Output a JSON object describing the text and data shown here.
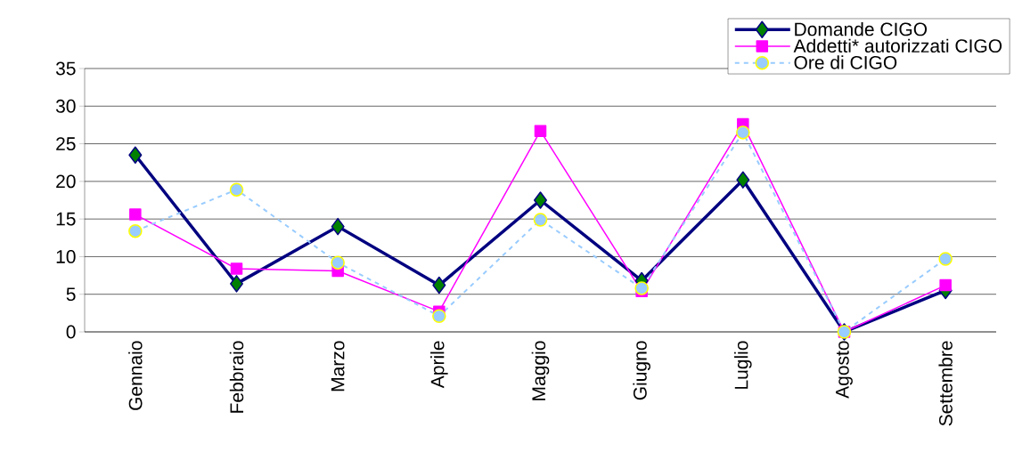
{
  "chart_data": {
    "type": "line",
    "categories": [
      "Gennaio",
      "Febbraio",
      "Marzo",
      "Aprile",
      "Maggio",
      "Giugno",
      "Luglio",
      "Agosto",
      "Settembre"
    ],
    "series": [
      {
        "name": "Domande CIGO",
        "color": "#000080",
        "marker": "diamond",
        "line_style": "solid",
        "values": [
          23.5,
          6.4,
          14,
          6.2,
          17.5,
          6.8,
          20.2,
          0,
          5.5
        ]
      },
      {
        "name": "Addetti* autorizzati CIGO",
        "color": "#ff00ff",
        "marker": "square",
        "line_style": "solid",
        "values": [
          15.6,
          8.4,
          8.1,
          2.7,
          26.7,
          5.4,
          27.6,
          0,
          6.2
        ]
      },
      {
        "name": "Ore di CIGO",
        "color": "#99ccff",
        "marker": "circle",
        "line_style": "dashed",
        "values": [
          13.4,
          18.9,
          9.2,
          2.1,
          14.9,
          5.8,
          26.5,
          0,
          9.7
        ]
      }
    ],
    "ylim": [
      0,
      35
    ],
    "yticks": [
      0,
      5,
      10,
      15,
      20,
      25,
      30,
      35
    ],
    "grid": "y",
    "legend": "top right"
  }
}
